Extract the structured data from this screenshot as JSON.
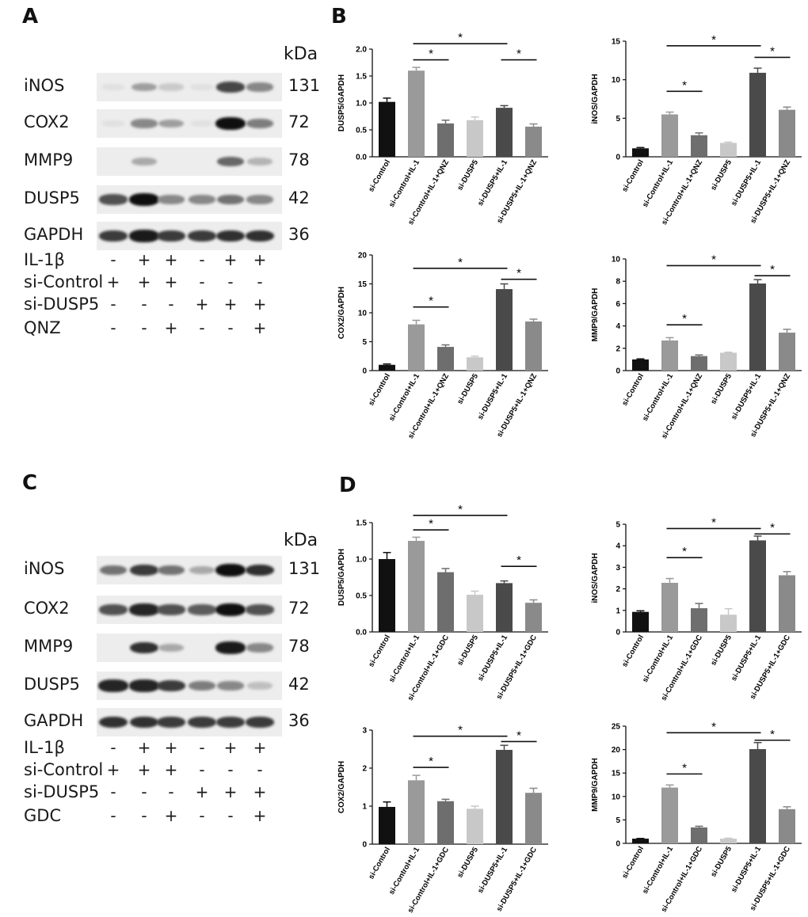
{
  "panels": {
    "A": "A",
    "B": "B",
    "C": "C",
    "D": "D"
  },
  "blots": [
    {
      "kda_label": "kDa",
      "rows": [
        {
          "label": "iNOS",
          "mw": "131",
          "intensity": [
            0.05,
            0.35,
            0.15,
            0.05,
            0.75,
            0.45
          ]
        },
        {
          "label": "COX2",
          "mw": "72",
          "intensity": [
            0.05,
            0.45,
            0.35,
            0.05,
            1.0,
            0.5
          ]
        },
        {
          "label": "MMP9",
          "mw": "78",
          "intensity": [
            0.0,
            0.3,
            0.0,
            0.0,
            0.6,
            0.25
          ]
        },
        {
          "label": "DUSP5",
          "mw": "42",
          "intensity": [
            0.7,
            1.0,
            0.45,
            0.45,
            0.55,
            0.45
          ]
        },
        {
          "label": "GAPDH",
          "mw": "36",
          "intensity": [
            0.8,
            0.95,
            0.8,
            0.8,
            0.85,
            0.85
          ]
        }
      ],
      "conditions": [
        {
          "label": "IL-1β",
          "signs": [
            "-",
            "+",
            "+",
            "-",
            "+",
            "+"
          ]
        },
        {
          "label": "si-Control",
          "signs": [
            "+",
            "+",
            "+",
            "-",
            "-",
            "-"
          ]
        },
        {
          "label": "si-DUSP5",
          "signs": [
            "-",
            "-",
            "-",
            "+",
            "+",
            "+"
          ]
        },
        {
          "label": "QNZ",
          "signs": [
            "-",
            "-",
            "+",
            "-",
            "-",
            "+"
          ]
        }
      ]
    },
    {
      "kda_label": "kDa",
      "rows": [
        {
          "label": "iNOS",
          "mw": "131",
          "intensity": [
            0.55,
            0.8,
            0.55,
            0.3,
            1.0,
            0.85
          ]
        },
        {
          "label": "COX2",
          "mw": "72",
          "intensity": [
            0.7,
            0.9,
            0.7,
            0.65,
            1.0,
            0.7
          ]
        },
        {
          "label": "MMP9",
          "mw": "78",
          "intensity": [
            0.0,
            0.85,
            0.3,
            0.0,
            0.95,
            0.45
          ]
        },
        {
          "label": "DUSP5",
          "mw": "42",
          "intensity": [
            0.9,
            0.9,
            0.8,
            0.5,
            0.45,
            0.2
          ]
        },
        {
          "label": "GAPDH",
          "mw": "36",
          "intensity": [
            0.85,
            0.85,
            0.8,
            0.8,
            0.8,
            0.8
          ]
        }
      ],
      "conditions": [
        {
          "label": "IL-1β",
          "signs": [
            "-",
            "+",
            "+",
            "-",
            "+",
            "+"
          ]
        },
        {
          "label": "si-Control",
          "signs": [
            "+",
            "+",
            "+",
            "-",
            "-",
            "-"
          ]
        },
        {
          "label": "si-DUSP5",
          "signs": [
            "-",
            "-",
            "-",
            "+",
            "+",
            "+"
          ]
        },
        {
          "label": "GDC",
          "signs": [
            "-",
            "-",
            "+",
            "-",
            "-",
            "+"
          ]
        }
      ]
    }
  ],
  "bar_colors": [
    "#111111",
    "#9a9a9a",
    "#6e6e6e",
    "#c8c8c8",
    "#4a4a4a",
    "#8a8a8a"
  ],
  "chart_data": [
    {
      "type": "bar",
      "categories": [
        "si-Control",
        "si-Control+IL-1",
        "si-Control+IL-1+QNZ",
        "si-DUSP5",
        "si-DUSP5+IL-1",
        "si-DUSP5+IL-1+QNZ"
      ],
      "values": [
        1.02,
        1.6,
        0.62,
        0.68,
        0.91,
        0.56
      ],
      "errors": [
        0.07,
        0.06,
        0.06,
        0.06,
        0.04,
        0.05
      ],
      "ylabel": "DUSP5/GAPDH",
      "ylim": [
        0,
        2.0
      ],
      "yticks": [
        "0.0",
        "0.5",
        "1.0",
        "1.5",
        "2.0"
      ],
      "sig": [
        {
          "from": 1,
          "to": 2,
          "y": 1.8,
          "label": "*"
        },
        {
          "from": 1,
          "to": 4,
          "y": 2.1,
          "label": "*"
        },
        {
          "from": 4,
          "to": 5,
          "y": 1.8,
          "label": "*"
        }
      ]
    },
    {
      "type": "bar",
      "categories": [
        "si-Control",
        "si-Control+IL-1",
        "si-Control+IL-1+QNZ",
        "si-DUSP5",
        "si-DUSP5+IL-1",
        "si-DUSP5+IL-1+QNZ"
      ],
      "values": [
        1.1,
        5.5,
        2.8,
        1.8,
        10.9,
        6.1
      ],
      "errors": [
        0.1,
        0.3,
        0.3,
        0.1,
        0.6,
        0.35
      ],
      "ylabel": "iNOS/GAPDH",
      "ylim": [
        0,
        15
      ],
      "yticks": [
        "0",
        "5",
        "10",
        "15"
      ],
      "sig": [
        {
          "from": 1,
          "to": 2,
          "y": 8.5,
          "label": "*"
        },
        {
          "from": 1,
          "to": 4,
          "y": 14.4,
          "label": "*"
        },
        {
          "from": 4,
          "to": 5,
          "y": 12.9,
          "label": "*"
        }
      ]
    },
    {
      "type": "bar",
      "categories": [
        "si-Control",
        "si-Control+IL-1",
        "si-Control+IL-1+QNZ",
        "si-DUSP5",
        "si-DUSP5+IL-1",
        "si-DUSP5+IL-1+QNZ"
      ],
      "values": [
        1.0,
        8.0,
        4.1,
        2.3,
        14.1,
        8.5
      ],
      "errors": [
        0.15,
        0.7,
        0.35,
        0.2,
        0.9,
        0.4
      ],
      "ylabel": "COX2/GAPDH",
      "ylim": [
        0,
        20
      ],
      "yticks": [
        "0",
        "5",
        "10",
        "15",
        "20"
      ],
      "sig": [
        {
          "from": 1,
          "to": 2,
          "y": 11.0,
          "label": "*"
        },
        {
          "from": 1,
          "to": 4,
          "y": 17.7,
          "label": "*"
        },
        {
          "from": 4,
          "to": 5,
          "y": 15.8,
          "label": "*"
        }
      ]
    },
    {
      "type": "bar",
      "categories": [
        "si-Control",
        "si-Control+IL-1",
        "si-Control+IL-1+QNZ",
        "si-DUSP5",
        "si-DUSP5+IL-1",
        "si-DUSP5+IL-1+QNZ"
      ],
      "values": [
        1.0,
        2.7,
        1.3,
        1.6,
        7.8,
        3.4
      ],
      "errors": [
        0.05,
        0.25,
        0.1,
        0.05,
        0.35,
        0.3
      ],
      "ylabel": "MMP9/GAPDH",
      "ylim": [
        0,
        10
      ],
      "yticks": [
        "0",
        "2",
        "4",
        "6",
        "8",
        "10"
      ],
      "sig": [
        {
          "from": 1,
          "to": 2,
          "y": 4.1,
          "label": "*"
        },
        {
          "from": 1,
          "to": 4,
          "y": 9.4,
          "label": "*"
        },
        {
          "from": 4,
          "to": 5,
          "y": 8.5,
          "label": "*"
        }
      ]
    },
    {
      "type": "bar",
      "categories": [
        "si-Control",
        "si-Control+IL-1",
        "si-Control+IL-1+GDC",
        "si-DUSP5",
        "si-DUSP5+IL-1",
        "si-DUSP5+IL-1+GDC"
      ],
      "values": [
        1.0,
        1.25,
        0.82,
        0.51,
        0.67,
        0.4
      ],
      "errors": [
        0.09,
        0.05,
        0.05,
        0.05,
        0.03,
        0.04
      ],
      "ylabel": "DUSP5/GAPDH",
      "ylim": [
        0,
        1.5
      ],
      "yticks": [
        "0.0",
        "0.5",
        "1.0",
        "1.5"
      ],
      "sig": [
        {
          "from": 1,
          "to": 2,
          "y": 1.4,
          "label": "*"
        },
        {
          "from": 1,
          "to": 4,
          "y": 1.6,
          "label": "*"
        },
        {
          "from": 4,
          "to": 5,
          "y": 0.9,
          "label": "*"
        }
      ]
    },
    {
      "type": "bar",
      "categories": [
        "si-Control",
        "si-Control+IL-1",
        "si-Control+IL-1+GDC",
        "si-DUSP5",
        "si-DUSP5+IL-1",
        "si-DUSP5+IL-1+GDC"
      ],
      "values": [
        0.93,
        2.28,
        1.1,
        0.8,
        4.25,
        2.63
      ],
      "errors": [
        0.05,
        0.2,
        0.22,
        0.28,
        0.2,
        0.17
      ],
      "ylabel": "iNOS/GAPDH",
      "ylim": [
        0,
        5
      ],
      "yticks": [
        "0",
        "1",
        "2",
        "3",
        "4",
        "5"
      ],
      "sig": [
        {
          "from": 1,
          "to": 2,
          "y": 3.45,
          "label": "*"
        },
        {
          "from": 1,
          "to": 4,
          "y": 4.8,
          "label": "*"
        },
        {
          "from": 4,
          "to": 5,
          "y": 4.55,
          "label": "*"
        }
      ]
    },
    {
      "type": "bar",
      "categories": [
        "si-Control",
        "si-Control+IL-1",
        "si-Control+IL-1+GDC",
        "si-DUSP5",
        "si-DUSP5+IL-1",
        "si-DUSP5+IL-1+GDC"
      ],
      "values": [
        0.98,
        1.68,
        1.13,
        0.93,
        2.48,
        1.35
      ],
      "errors": [
        0.13,
        0.13,
        0.05,
        0.07,
        0.12,
        0.12
      ],
      "ylabel": "COX2/GAPDH",
      "ylim": [
        0,
        3
      ],
      "yticks": [
        "0",
        "1",
        "2",
        "3"
      ],
      "sig": [
        {
          "from": 1,
          "to": 2,
          "y": 2.02,
          "label": "*"
        },
        {
          "from": 1,
          "to": 4,
          "y": 2.84,
          "label": "*"
        },
        {
          "from": 4,
          "to": 5,
          "y": 2.7,
          "label": "*"
        }
      ]
    },
    {
      "type": "bar",
      "categories": [
        "si-Control",
        "si-Control+IL-1",
        "si-Control+IL-1+GDC",
        "si-DUSP5",
        "si-DUSP5+IL-1",
        "si-DUSP5+IL-1+GDC"
      ],
      "values": [
        1.0,
        11.9,
        3.4,
        1.0,
        20.1,
        7.3
      ],
      "errors": [
        0.05,
        0.55,
        0.25,
        0.1,
        1.4,
        0.5
      ],
      "ylabel": "MMP9/GAPDH",
      "ylim": [
        0,
        25
      ],
      "yticks": [
        "0",
        "5",
        "10",
        "15",
        "20",
        "25"
      ],
      "sig": [
        {
          "from": 1,
          "to": 2,
          "y": 14.8,
          "label": "*"
        },
        {
          "from": 1,
          "to": 4,
          "y": 23.6,
          "label": "*"
        },
        {
          "from": 4,
          "to": 5,
          "y": 22.0,
          "label": "*"
        }
      ]
    }
  ]
}
